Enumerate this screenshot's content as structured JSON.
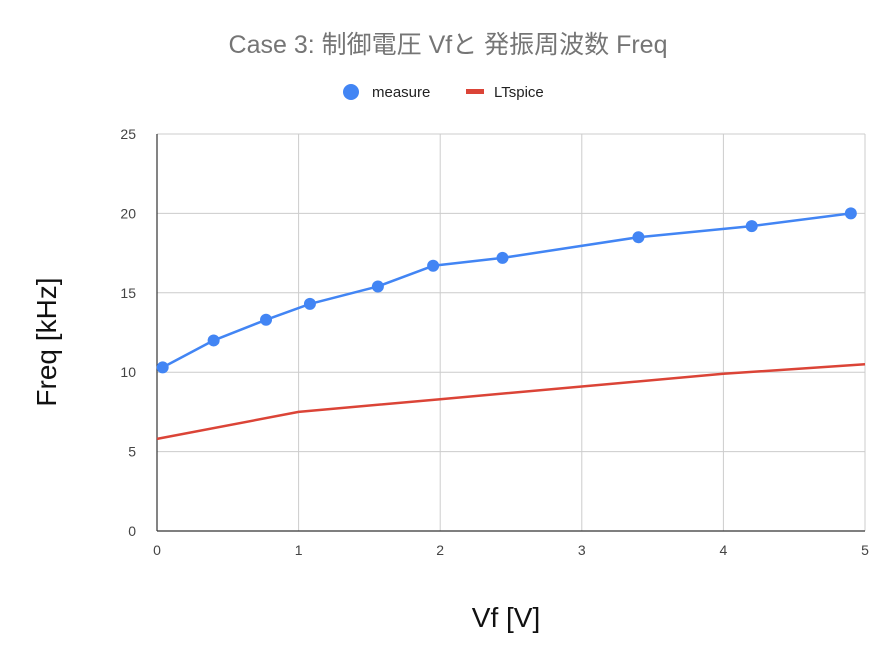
{
  "chart_data": {
    "type": "line",
    "title": "Case 3: 制御電圧 Vfと 発振周波数 Freq",
    "xlabel": "Vf [V]",
    "ylabel": "Freq [kHz]",
    "xlim": [
      0,
      5
    ],
    "ylim": [
      0,
      25
    ],
    "xticks": [
      "0",
      "1",
      "2",
      "3",
      "4",
      "5"
    ],
    "yticks": [
      "0",
      "5",
      "10",
      "15",
      "20",
      "25"
    ],
    "grid": true,
    "legend": "top-center",
    "series": [
      {
        "name": "measure",
        "color": "#4285F4",
        "marker": "circle",
        "points": [
          [
            0.04,
            10.3
          ],
          [
            0.4,
            12.0
          ],
          [
            0.77,
            13.3
          ],
          [
            1.08,
            14.3
          ],
          [
            1.56,
            15.4
          ],
          [
            1.95,
            16.7
          ],
          [
            2.44,
            17.2
          ],
          [
            3.4,
            18.5
          ],
          [
            4.2,
            19.2
          ],
          [
            4.9,
            20.0
          ]
        ]
      },
      {
        "name": "LTspice",
        "color": "#DB4437",
        "marker": "none",
        "points": [
          [
            0,
            5.8
          ],
          [
            1.0,
            7.5
          ],
          [
            2.0,
            8.3
          ],
          [
            3.0,
            9.1
          ],
          [
            4.0,
            9.9
          ],
          [
            5.0,
            10.5
          ]
        ]
      }
    ]
  }
}
